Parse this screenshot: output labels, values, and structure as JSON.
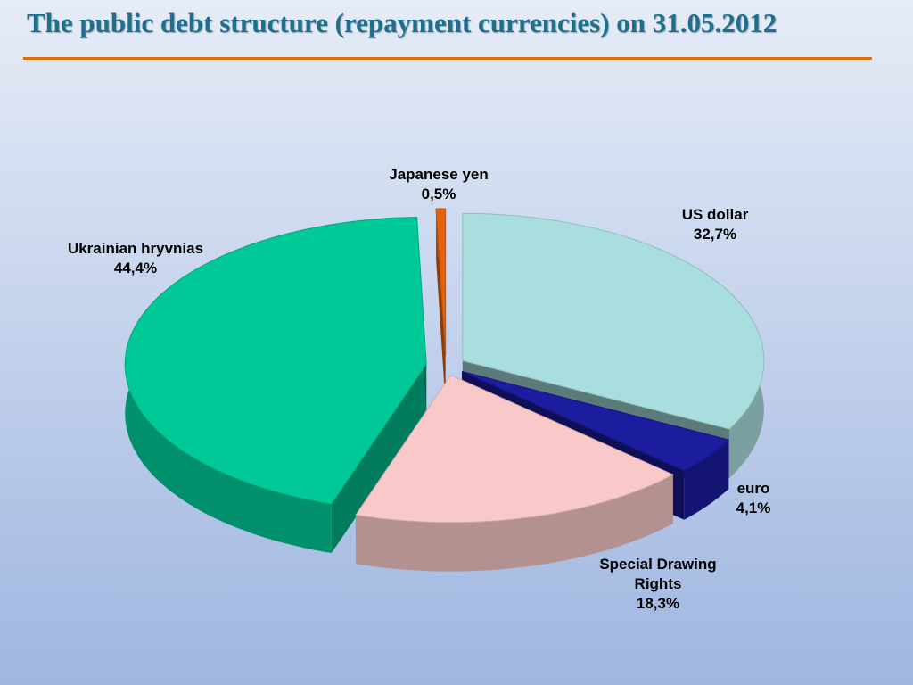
{
  "chart_data": {
    "type": "pie",
    "title": "The public debt structure (repayment currencies) on 31.05.2012",
    "categories": [
      "US dollar",
      "euro",
      "Special Drawing Rights",
      "Ukrainian hryvnias",
      "Japanese yen"
    ],
    "values": [
      32.7,
      4.1,
      18.3,
      44.4,
      0.5
    ],
    "value_labels": [
      "32,7%",
      "4,1%",
      "18,3%",
      "44,4%",
      "0,5%"
    ],
    "colors": [
      "#a9dede",
      "#1c1c9e",
      "#f9c9c9",
      "#00c896",
      "#e2620e"
    ]
  }
}
